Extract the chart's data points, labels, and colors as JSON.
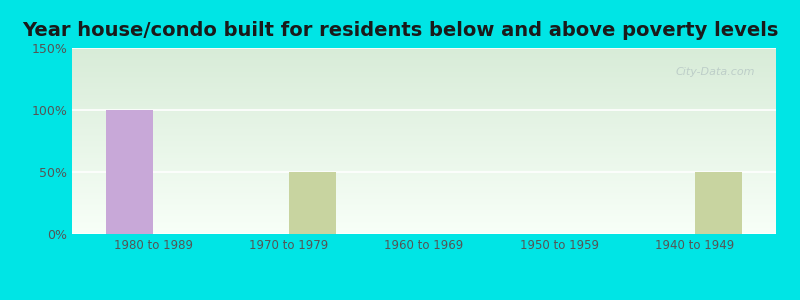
{
  "title": "Year house/condo built for residents below and above poverty levels",
  "categories": [
    "1980 to 1989",
    "1970 to 1979",
    "1960 to 1969",
    "1950 to 1959",
    "1940 to 1949"
  ],
  "below_poverty": [
    100,
    0,
    0,
    0,
    0
  ],
  "above_poverty": [
    0,
    50,
    0,
    0,
    50
  ],
  "below_color": "#c8a8d8",
  "above_color": "#c8d4a0",
  "ylim": [
    0,
    150
  ],
  "yticks": [
    0,
    50,
    100,
    150
  ],
  "ytick_labels": [
    "0%",
    "50%",
    "100%",
    "150%"
  ],
  "outer_bg": "#00e5e5",
  "plot_bg_top": "#e8f5e8",
  "plot_bg_bottom": "#f8fff8",
  "bar_width": 0.35,
  "title_fontsize": 14,
  "watermark": "City-Data.com"
}
